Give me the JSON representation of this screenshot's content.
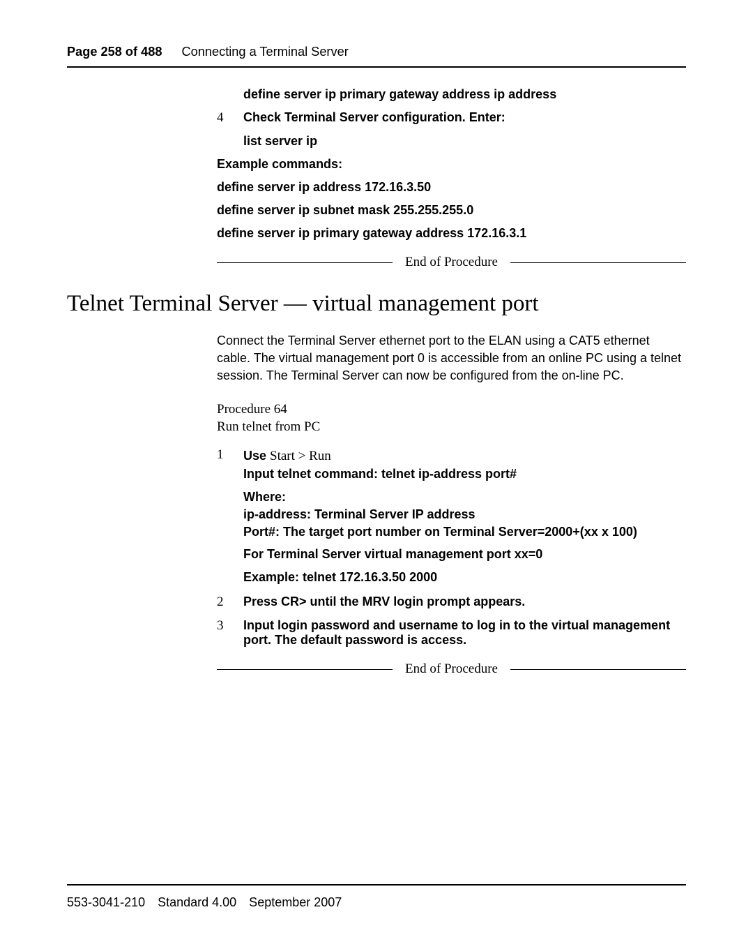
{
  "header": {
    "page_of": "Page 258 of 488",
    "title": "Connecting a Terminal Server"
  },
  "top_block": {
    "define_gateway": "define server ip primary gateway address ip address",
    "step4_num": "4",
    "step4_text": "Check Terminal Server configuration. Enter:",
    "list_server": "list server ip",
    "example_label": "Example commands:",
    "cmd1": "define server ip address 172.16.3.50",
    "cmd2": "define server ip subnet mask 255.255.255.0",
    "cmd3": "define server ip primary gateway address 172.16.3.1"
  },
  "end_proc_label": "End of Procedure",
  "section_heading": "Telnet Terminal Server — virtual management port",
  "body_para": "Connect the Terminal Server ethernet port to the ELAN using a CAT5 ethernet cable. The virtual management port 0 is accessible from an online PC using a telnet session. The Terminal Server can now be configured from the on-line PC.",
  "proc": {
    "num_line": "Procedure 64",
    "title_line": "Run telnet from PC",
    "s1_num": "1",
    "s1_use": "Use ",
    "s1_startrun": "Start > Run",
    "s1_input": "Input telnet command: telnet ip-address port#",
    "s1_where": "Where:",
    "s1_ip": "ip-address: Terminal Server IP address",
    "s1_port": "Port#: The target port number on Terminal Server=2000+(xx x 100)",
    "s1_mgmt": "For Terminal Server virtual management port xx=0",
    "s1_example": "Example: telnet 172.16.3.50 2000",
    "s2_num": "2",
    "s2_text": "Press CR> until the MRV login prompt appears.",
    "s3_num": "3",
    "s3_text": "Input login password and username to log in to the virtual management port. The default password is access."
  },
  "footer": {
    "text": "553-3041-210 Standard 4.00 September 2007"
  }
}
